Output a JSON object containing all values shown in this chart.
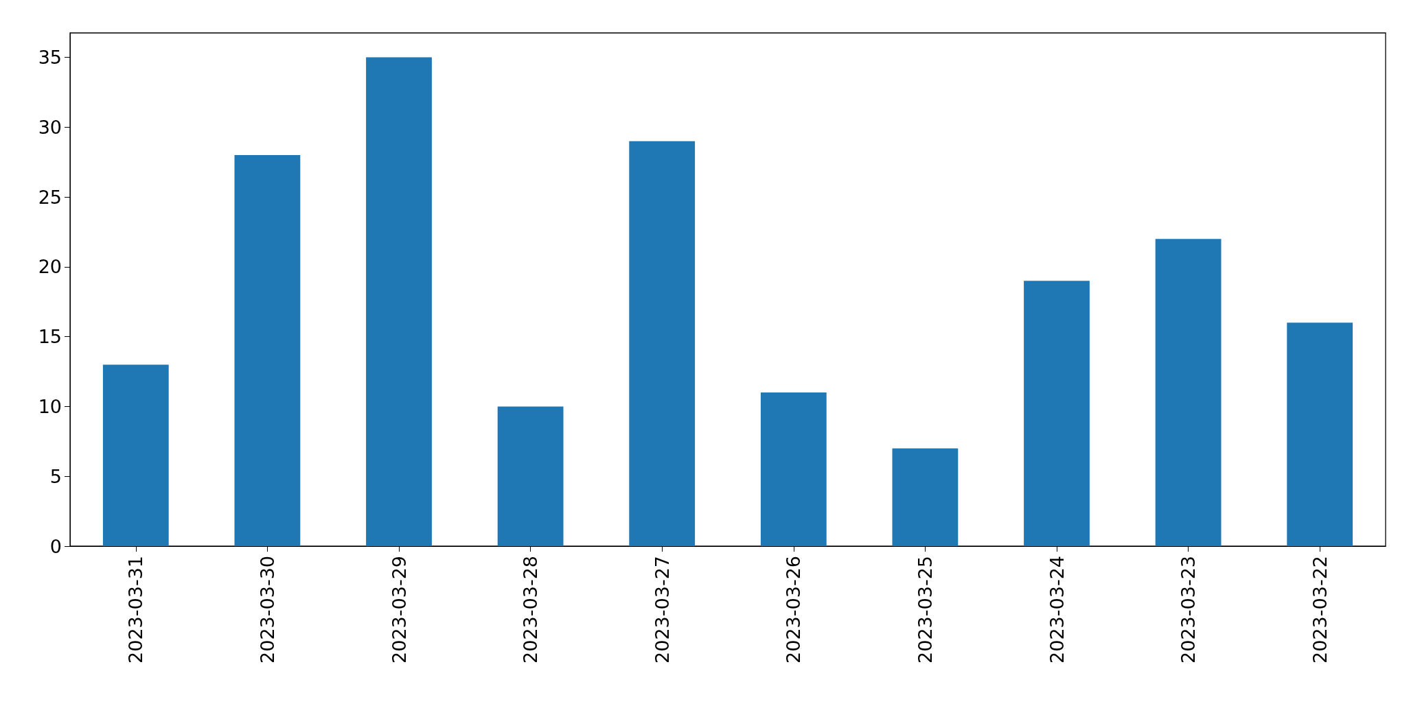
{
  "chart_data": {
    "type": "bar",
    "categories": [
      "2023-03-31",
      "2023-03-30",
      "2023-03-29",
      "2023-03-28",
      "2023-03-27",
      "2023-03-26",
      "2023-03-25",
      "2023-03-24",
      "2023-03-23",
      "2023-03-22"
    ],
    "values": [
      13,
      28,
      35,
      10,
      29,
      11,
      7,
      19,
      22,
      16
    ],
    "color": "#1f77b4",
    "ylim": [
      0,
      36.75
    ],
    "yticks": [
      0,
      5,
      10,
      15,
      20,
      25,
      30,
      35
    ]
  }
}
